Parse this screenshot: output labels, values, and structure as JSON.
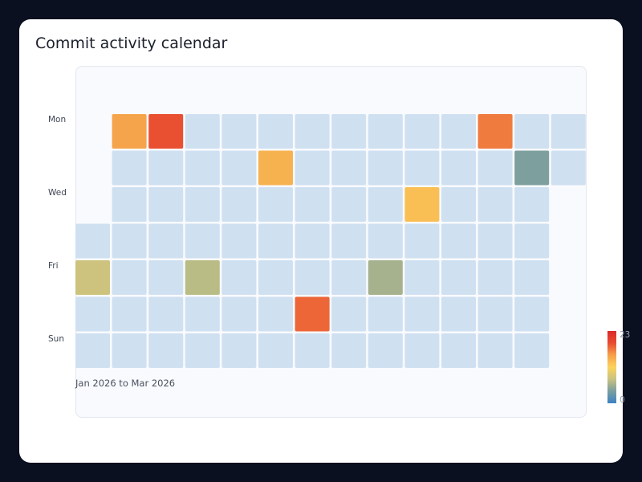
{
  "title": "Commit activity calendar",
  "chart_data": {
    "type": "heatmap",
    "title": "Commit activity calendar",
    "caption": "Jan 2026 to Mar 2026",
    "day_labels": [
      "Mon",
      "",
      "Wed",
      "",
      "Fri",
      "",
      "Sun"
    ],
    "week_count": 14,
    "empty_color": "#cfe0f1",
    "colorscale": [
      "#3b82c4",
      "#7a9e9f",
      "#c8c281",
      "#fcd35c",
      "#f5a04a",
      "#e84c30",
      "#d92b2b"
    ],
    "legend": {
      "min": 0,
      "max": 23,
      "min_label": "0",
      "max_label": "23",
      "placement": "right"
    },
    "cells": [
      {
        "week": 0,
        "day": 4,
        "value": 8
      },
      {
        "week": 1,
        "day": 0,
        "value": 15
      },
      {
        "week": 2,
        "day": 0,
        "value": 19
      },
      {
        "week": 3,
        "day": 4,
        "value": 7
      },
      {
        "week": 5,
        "day": 1,
        "value": 14
      },
      {
        "week": 6,
        "day": 5,
        "value": 18
      },
      {
        "week": 8,
        "day": 4,
        "value": 6
      },
      {
        "week": 9,
        "day": 2,
        "value": 13
      },
      {
        "week": 11,
        "day": 0,
        "value": 17
      },
      {
        "week": 12,
        "day": 1,
        "value": 4
      }
    ]
  }
}
